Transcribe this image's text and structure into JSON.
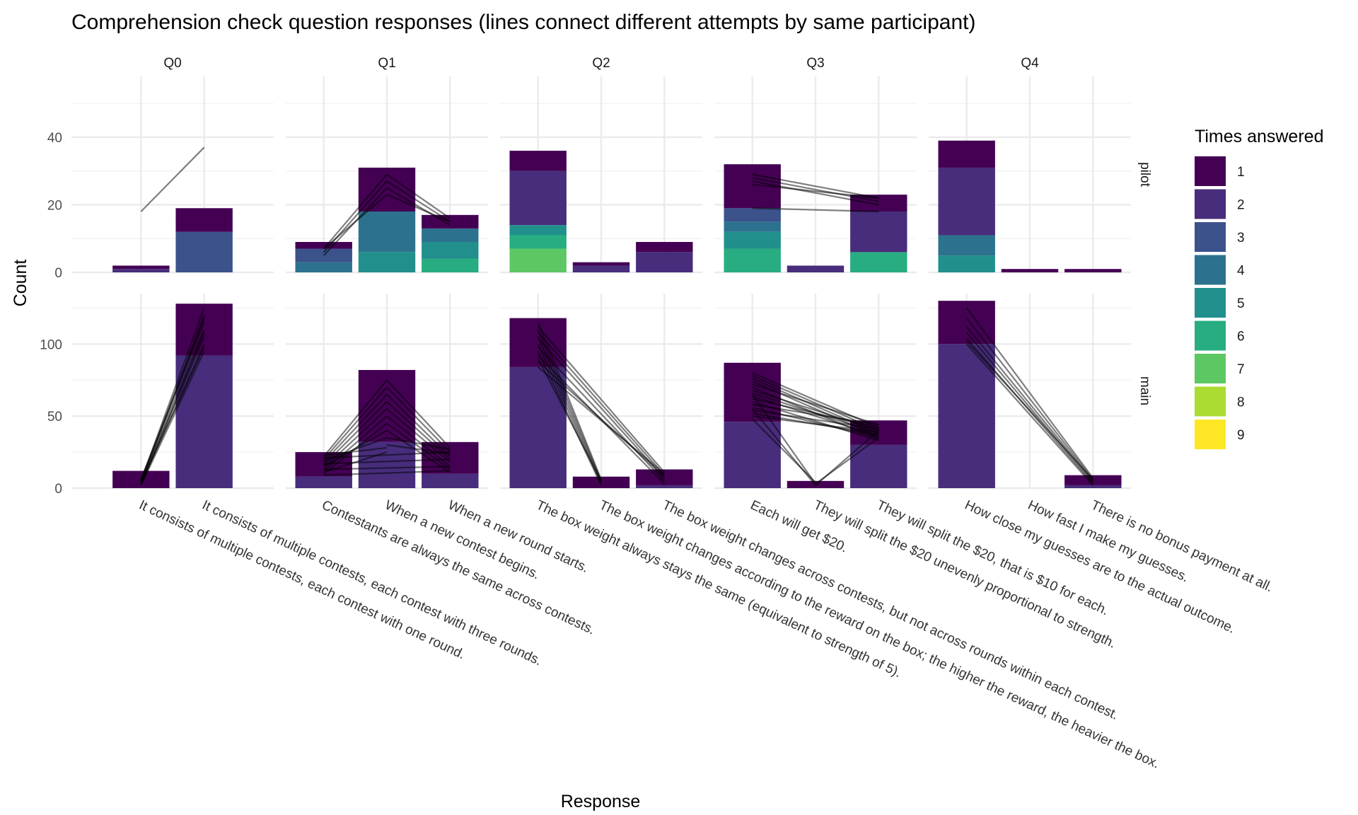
{
  "chart_data": {
    "type": "bar",
    "title": "Comprehension check question responses (lines connect different attempts by same participant)",
    "xlabel": "Response",
    "ylabel": "Count",
    "legend": {
      "title": "Times answered",
      "position": "right",
      "levels": [
        "1",
        "2",
        "3",
        "4",
        "5",
        "6",
        "7",
        "8",
        "9"
      ]
    },
    "colors": [
      "#440154",
      "#472D7B",
      "#3B528B",
      "#2C728E",
      "#21908C",
      "#27AD81",
      "#5DC863",
      "#AADC32",
      "#FDE725"
    ],
    "questions": [
      "Q0",
      "Q1",
      "Q2",
      "Q3",
      "Q4"
    ],
    "rows": [
      {
        "name": "pilot",
        "ylim": [
          0,
          58
        ],
        "yticks": [
          0,
          20,
          40
        ]
      },
      {
        "name": "main",
        "ylim": [
          0,
          135
        ],
        "yticks": [
          0,
          50,
          100
        ]
      }
    ],
    "responses": {
      "Q0": [
        "It consists of multiple contests, each contest with one round.",
        "It consists of multiple contests, each contest with three rounds."
      ],
      "Q1": [
        "Contestants are always the same across contests.",
        "When a new contest begins.",
        "When a new round starts."
      ],
      "Q2": [
        "The box weight always stays the same (equivalent to strength of 5).",
        "The box weight changes according to the reward on the box; the higher the reward, the heavier the box.",
        "The box weight changes across contests, but not across rounds within each contest."
      ],
      "Q3": [
        "Each will get $20.",
        "They will split the $20 unevenly proportional to strength.",
        "They will split the $20, that is $10 for each."
      ],
      "Q4": [
        "How close my guesses are to the actual outcome.",
        "How fast I make my guesses.",
        "There is no bonus payment at all."
      ]
    },
    "x_tick_labels": [
      "It consists of multiple contests, each contest with one round.",
      "It consists of multiple contests, each contest with three rounds.",
      "Contestants are always the same across contests.",
      "When a new contest begins.",
      "When a new round starts.",
      "The box weight always stays the same (equivalent to strength of 5).",
      "The box weight changes according to the reward on the box; the higher the reward, the heavier the box.",
      "The box weight changes across contests, but not across rounds within each contest.",
      "Each will get $20.",
      "They will split the $20 unevenly proportional to strength.",
      "They will split the $20, that is $10 for each.",
      "How close my guesses are to the actual outcome.",
      "How fast I make my guesses.",
      "There is no bonus payment at all."
    ],
    "stacks": {
      "pilot": {
        "Q0": [
          [
            1,
            1,
            0,
            0,
            0,
            0,
            0,
            0,
            0
          ],
          [
            7,
            0,
            12,
            0,
            0,
            0,
            0,
            0,
            0
          ]
        ],
        "Q1": [
          [
            2,
            0,
            4,
            3,
            0,
            0,
            0,
            0,
            0
          ],
          [
            13,
            0,
            0,
            12,
            6,
            0,
            0,
            0,
            0
          ],
          [
            4,
            0,
            0,
            4,
            5,
            4,
            0,
            0,
            0
          ]
        ],
        "Q2": [
          [
            6,
            16,
            0,
            0,
            3,
            4,
            7,
            0,
            0
          ],
          [
            1,
            2,
            0,
            0,
            0,
            0,
            0,
            0,
            0
          ],
          [
            3,
            6,
            0,
            0,
            0,
            0,
            0,
            0,
            0
          ]
        ],
        "Q3": [
          [
            13,
            0,
            4,
            3,
            5,
            7,
            0,
            0,
            0
          ],
          [
            0,
            2,
            0,
            0,
            0,
            0,
            0,
            0,
            0
          ],
          [
            5,
            12,
            0,
            0,
            0,
            6,
            0,
            0,
            0
          ]
        ],
        "Q4": [
          [
            8,
            20,
            0,
            6,
            5,
            0,
            0,
            0,
            0
          ],
          [
            1,
            0,
            0,
            0,
            0,
            0,
            0,
            0,
            0
          ],
          [
            1,
            0,
            0,
            0,
            0,
            0,
            0,
            0,
            0
          ]
        ]
      },
      "main": {
        "Q0": [
          [
            12,
            0,
            0,
            0,
            0,
            0,
            0,
            0,
            0
          ],
          [
            36,
            92,
            0,
            0,
            0,
            0,
            0,
            0,
            0
          ]
        ],
        "Q1": [
          [
            17,
            8,
            0,
            0,
            0,
            0,
            0,
            0,
            0
          ],
          [
            50,
            32,
            0,
            0,
            0,
            0,
            0,
            0,
            0
          ],
          [
            22,
            10,
            0,
            0,
            0,
            0,
            0,
            0,
            0
          ]
        ],
        "Q2": [
          [
            34,
            84,
            0,
            0,
            0,
            0,
            0,
            0,
            0
          ],
          [
            8,
            0,
            0,
            0,
            0,
            0,
            0,
            0,
            0
          ],
          [
            11,
            2,
            0,
            0,
            0,
            0,
            0,
            0,
            0
          ]
        ],
        "Q3": [
          [
            41,
            46,
            0,
            0,
            0,
            0,
            0,
            0,
            0
          ],
          [
            5,
            0,
            0,
            0,
            0,
            0,
            0,
            0,
            0
          ],
          [
            17,
            30,
            0,
            0,
            0,
            0,
            0,
            0,
            0
          ]
        ],
        "Q4": [
          [
            30,
            100,
            0,
            0,
            0,
            0,
            0,
            0,
            0
          ],
          [
            0,
            0,
            0,
            0,
            0,
            0,
            0,
            0,
            0
          ],
          [
            7,
            2,
            0,
            0,
            0,
            0,
            0,
            0,
            0
          ]
        ]
      }
    },
    "connectors": {
      "pilot": {
        "Q0": [
          [
            0,
            18,
            1,
            37
          ]
        ],
        "Q1": [
          [
            0,
            7,
            1,
            29
          ],
          [
            0,
            6,
            1,
            27
          ],
          [
            0,
            5,
            1,
            25
          ],
          [
            0,
            7,
            1,
            23
          ],
          [
            1,
            29,
            2,
            16
          ],
          [
            1,
            27,
            2,
            15
          ],
          [
            1,
            25,
            2,
            14
          ],
          [
            1,
            23,
            2,
            15
          ]
        ],
        "Q2": [],
        "Q3": [
          [
            0,
            29,
            2,
            22
          ],
          [
            0,
            28,
            2,
            21
          ],
          [
            0,
            27,
            2,
            20
          ],
          [
            0,
            26,
            2,
            22
          ],
          [
            0,
            19,
            2,
            18
          ]
        ],
        "Q4": []
      },
      "main": {
        "Q0": [
          [
            0,
            2,
            1,
            95
          ],
          [
            0,
            3,
            1,
            100
          ],
          [
            0,
            4,
            1,
            105
          ],
          [
            0,
            5,
            1,
            110
          ],
          [
            0,
            6,
            1,
            115
          ],
          [
            0,
            3,
            1,
            120
          ],
          [
            0,
            5,
            1,
            125
          ],
          [
            0,
            2,
            1,
            108
          ],
          [
            0,
            4,
            1,
            98
          ],
          [
            0,
            6,
            1,
            118
          ]
        ],
        "Q1": [
          [
            0,
            22,
            1,
            75
          ],
          [
            0,
            20,
            1,
            70
          ],
          [
            0,
            18,
            1,
            65
          ],
          [
            0,
            16,
            1,
            60
          ],
          [
            0,
            14,
            1,
            55
          ],
          [
            0,
            12,
            1,
            50
          ],
          [
            0,
            10,
            1,
            45
          ],
          [
            0,
            15,
            1,
            40
          ],
          [
            0,
            19,
            1,
            35
          ],
          [
            0,
            23,
            1,
            28
          ],
          [
            0,
            11,
            1,
            25
          ],
          [
            0,
            13,
            2,
            15
          ],
          [
            0,
            17,
            2,
            20
          ],
          [
            0,
            21,
            2,
            25
          ],
          [
            0,
            9,
            2,
            12
          ],
          [
            1,
            75,
            2,
            28
          ],
          [
            1,
            70,
            2,
            25
          ],
          [
            1,
            65,
            2,
            22
          ],
          [
            1,
            60,
            2,
            20
          ],
          [
            1,
            55,
            2,
            18
          ],
          [
            1,
            50,
            2,
            15
          ],
          [
            1,
            45,
            2,
            13
          ],
          [
            1,
            40,
            2,
            11
          ],
          [
            1,
            35,
            2,
            27
          ],
          [
            1,
            30,
            2,
            24
          ]
        ],
        "Q2": [
          [
            0,
            115,
            1,
            6
          ],
          [
            0,
            110,
            1,
            5
          ],
          [
            0,
            105,
            1,
            4
          ],
          [
            0,
            100,
            1,
            3
          ],
          [
            0,
            95,
            1,
            2
          ],
          [
            0,
            90,
            1,
            5
          ],
          [
            0,
            112,
            2,
            11
          ],
          [
            0,
            108,
            2,
            9
          ],
          [
            0,
            104,
            2,
            7
          ],
          [
            0,
            98,
            2,
            5
          ],
          [
            0,
            92,
            2,
            3
          ],
          [
            0,
            88,
            2,
            8
          ],
          [
            0,
            84,
            2,
            10
          ]
        ],
        "Q3": [
          [
            0,
            80,
            2,
            42
          ],
          [
            0,
            78,
            2,
            40
          ],
          [
            0,
            76,
            2,
            38
          ],
          [
            0,
            74,
            2,
            36
          ],
          [
            0,
            72,
            2,
            44
          ],
          [
            0,
            70,
            2,
            34
          ],
          [
            0,
            68,
            2,
            40
          ],
          [
            0,
            66,
            2,
            38
          ],
          [
            0,
            64,
            2,
            36
          ],
          [
            0,
            62,
            2,
            42
          ],
          [
            0,
            60,
            2,
            33
          ],
          [
            0,
            58,
            2,
            44
          ],
          [
            0,
            56,
            2,
            35
          ],
          [
            0,
            54,
            2,
            41
          ],
          [
            0,
            52,
            2,
            37
          ],
          [
            0,
            50,
            2,
            39
          ],
          [
            0,
            65,
            1,
            3
          ],
          [
            0,
            55,
            1,
            2
          ],
          [
            0,
            48,
            1,
            4
          ],
          [
            1,
            3,
            2,
            35
          ],
          [
            1,
            2,
            2,
            40
          ]
        ],
        "Q4": [
          [
            0,
            125,
            2,
            7
          ],
          [
            0,
            118,
            2,
            6
          ],
          [
            0,
            112,
            2,
            5
          ],
          [
            0,
            108,
            2,
            4
          ],
          [
            0,
            104,
            2,
            3
          ],
          [
            0,
            102,
            2,
            6
          ],
          [
            0,
            100,
            2,
            2
          ]
        ]
      }
    }
  }
}
